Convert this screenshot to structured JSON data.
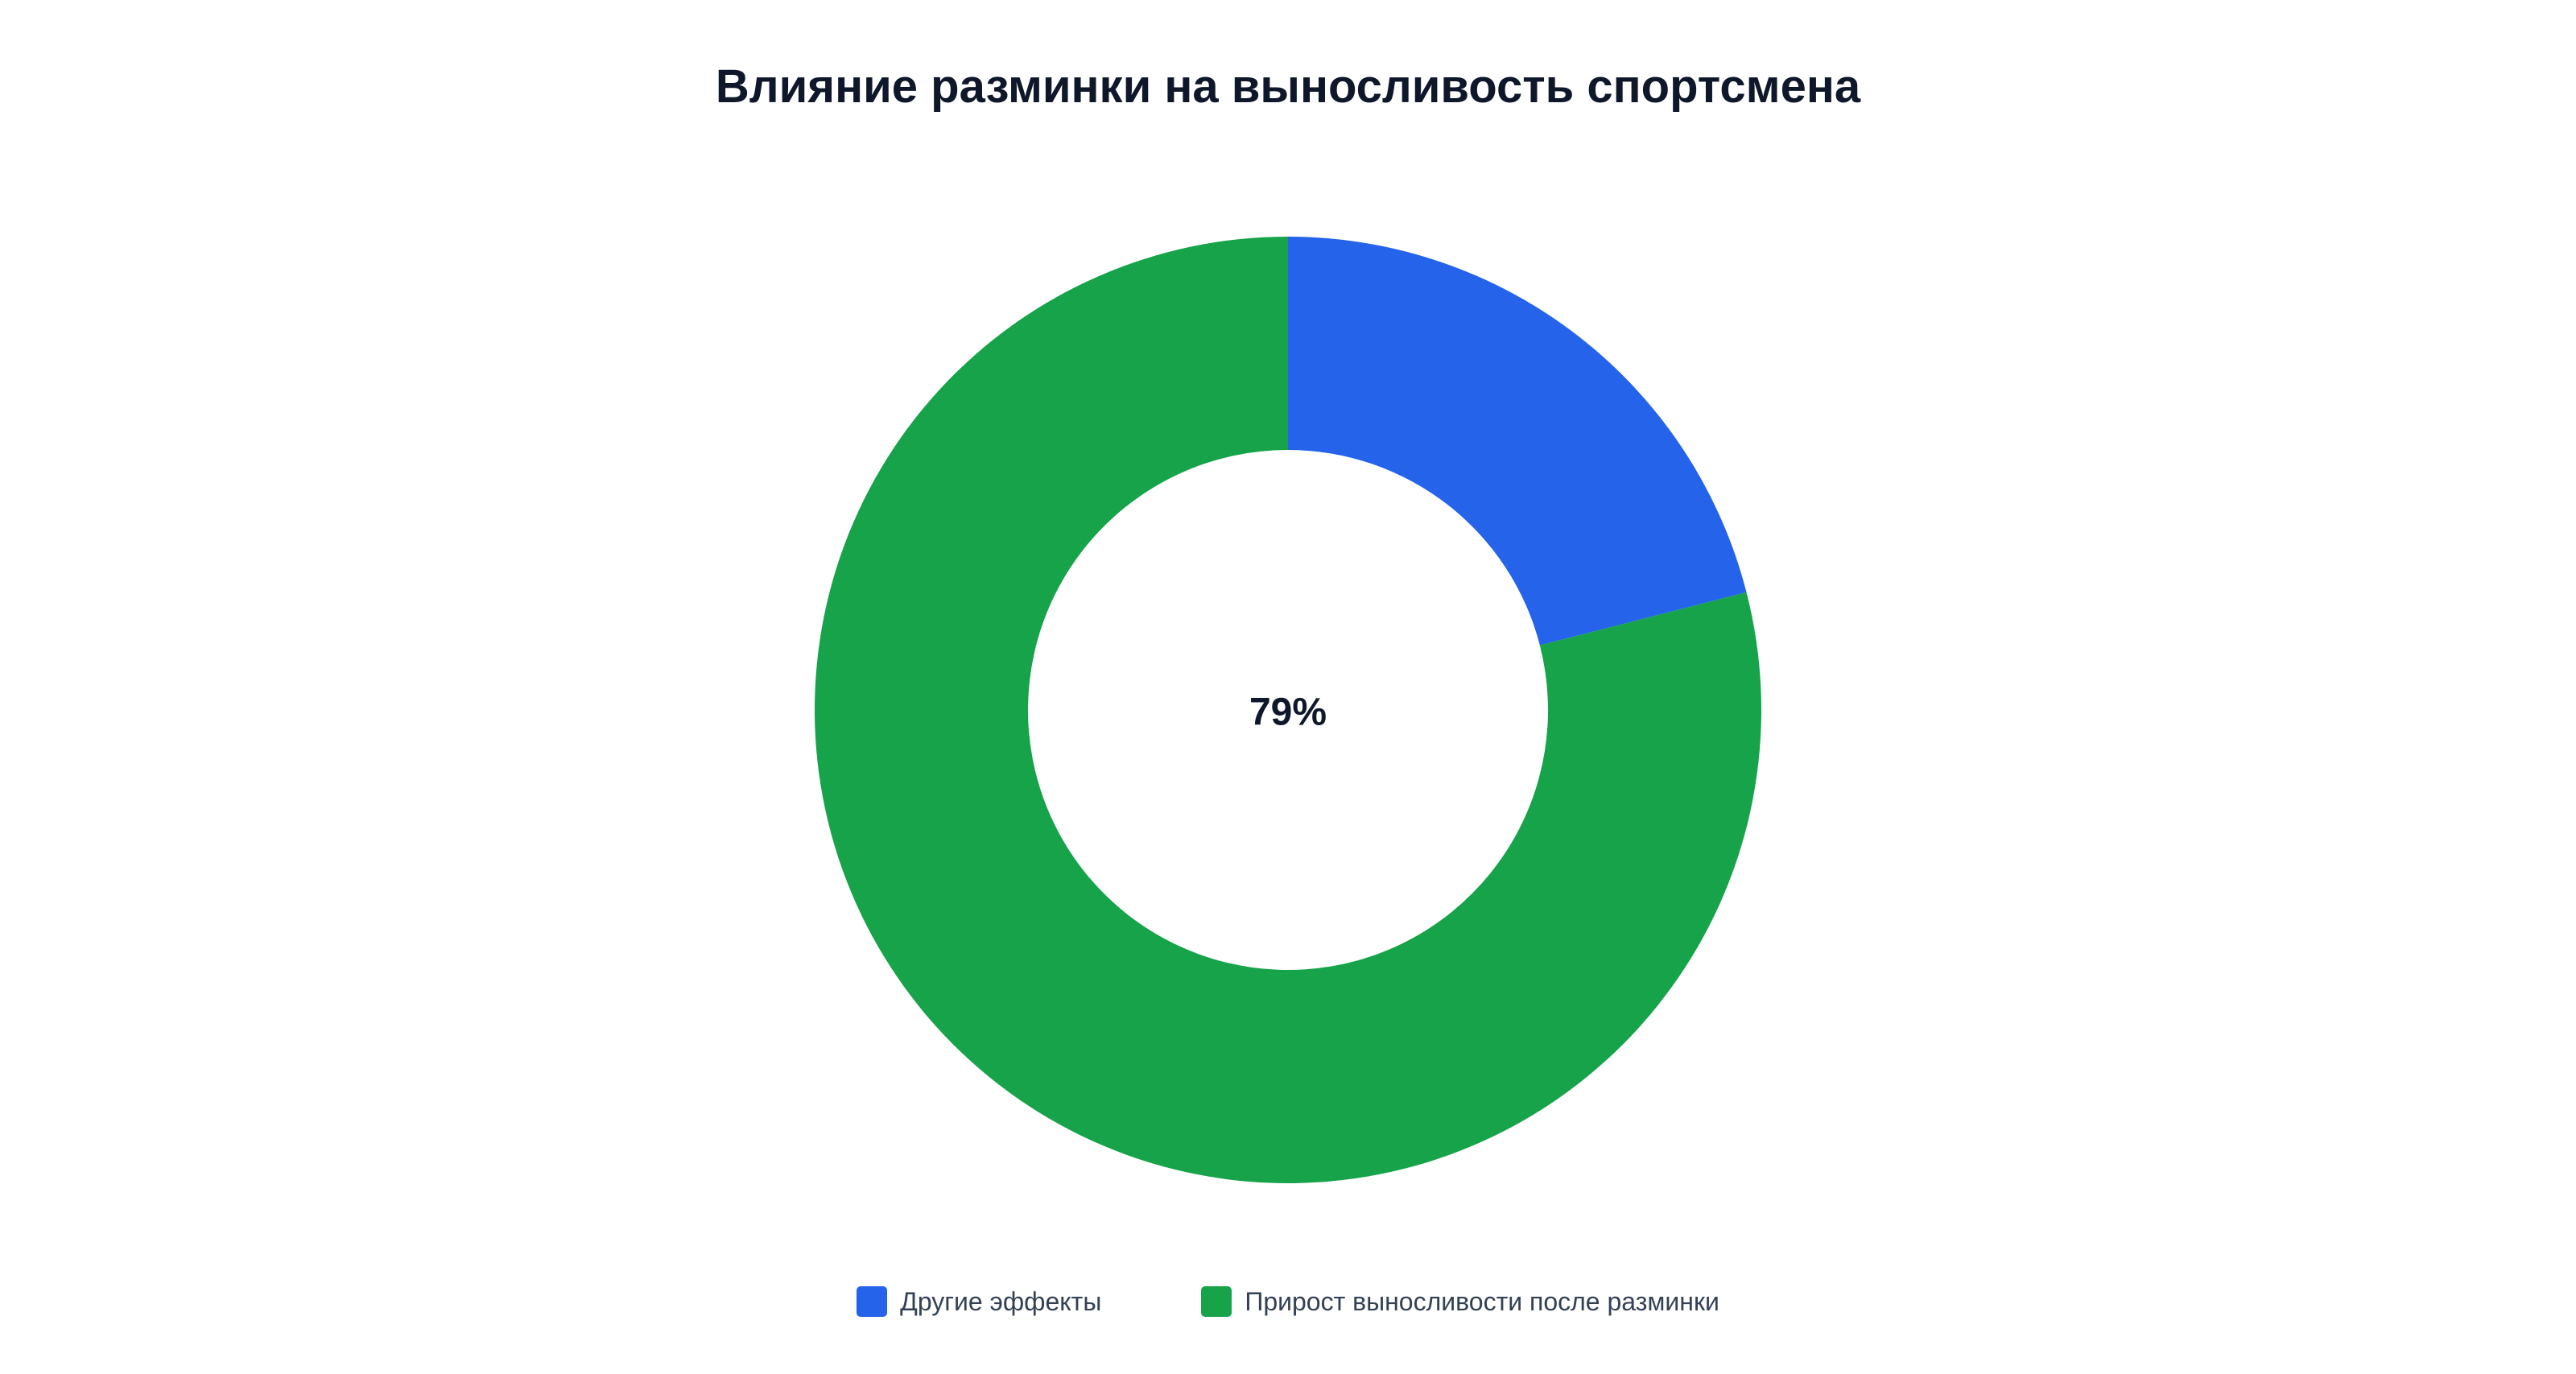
{
  "chart_data": {
    "type": "donut",
    "title": "Влияние разминки на выносливость спортсмена",
    "center_label": "79%",
    "categories": [
      "Другие эффекты",
      "Прирост выносливости после разминки"
    ],
    "values": [
      21,
      79
    ],
    "unit": "%",
    "colors": [
      "#2563eb",
      "#16a34a"
    ],
    "start_angle": "12 o'clock",
    "direction": "clockwise",
    "legend_position": "bottom-center"
  }
}
